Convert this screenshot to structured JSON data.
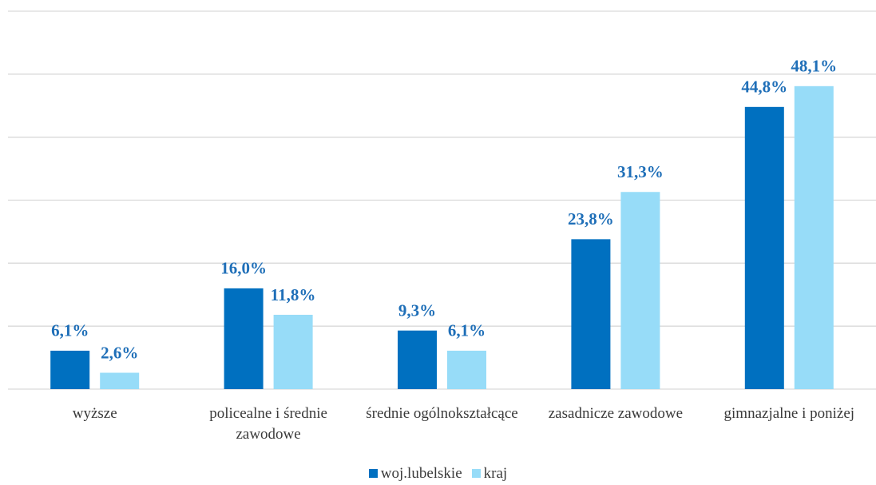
{
  "chart_data": {
    "type": "bar",
    "categories": [
      "wyższe",
      "policealne i średnie zawodowe",
      "średnie ogólnokształcące",
      "zasadnicze zawodowe",
      "gimnazjalne i poniżej"
    ],
    "series": [
      {
        "name": "woj.lubelskie",
        "color": "#0070c0",
        "values": [
          6.1,
          16.0,
          9.3,
          23.8,
          44.8
        ],
        "value_labels": [
          "6,1%",
          "16,0%",
          "9,3%",
          "23,8%",
          "44,8%"
        ]
      },
      {
        "name": "kraj",
        "color": "#97dcf8",
        "values": [
          2.6,
          11.8,
          6.1,
          31.3,
          48.1
        ],
        "value_labels": [
          "2,6%",
          "11,8%",
          "6,1%",
          "31,3%",
          "48,1%"
        ]
      }
    ],
    "ylim": [
      0,
      60
    ],
    "yticks": [
      0,
      10,
      20,
      30,
      40,
      50,
      60
    ],
    "grid": true,
    "legend": "bottom"
  }
}
